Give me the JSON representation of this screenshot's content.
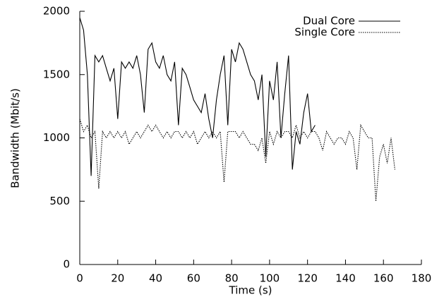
{
  "chart_data": {
    "type": "line",
    "xlabel": "Time (s)",
    "ylabel": "Bandwidth (Mbit/s)",
    "x": [
      0,
      2,
      4,
      6,
      8,
      10,
      12,
      14,
      16,
      18,
      20,
      22,
      24,
      26,
      28,
      30,
      32,
      34,
      36,
      38,
      40,
      42,
      44,
      46,
      48,
      50,
      52,
      54,
      56,
      58,
      60,
      62,
      64,
      66,
      68,
      70,
      72,
      74,
      76,
      78,
      80,
      82,
      84,
      86,
      88,
      90,
      92,
      94,
      96,
      98,
      100,
      102,
      104,
      106,
      108,
      110,
      112,
      114,
      116,
      118,
      120,
      122,
      124,
      126,
      128,
      130,
      132,
      134,
      136,
      138,
      140,
      142,
      144,
      146,
      148,
      150,
      152,
      154,
      156,
      158,
      160,
      162,
      164,
      166
    ],
    "series": [
      {
        "name": "Dual Core",
        "color": "#000000",
        "dash": "solid",
        "values": [
          1950,
          1850,
          1500,
          700,
          1650,
          1600,
          1650,
          1550,
          1450,
          1550,
          1150,
          1600,
          1550,
          1600,
          1550,
          1650,
          1500,
          1200,
          1700,
          1750,
          1600,
          1550,
          1650,
          1500,
          1450,
          1600,
          1100,
          1550,
          1500,
          1400,
          1300,
          1250,
          1200,
          1350,
          1150,
          1000,
          1300,
          1500,
          1650,
          1100,
          1700,
          1600,
          1750,
          1700,
          1600,
          1500,
          1450,
          1300,
          1500,
          850,
          1450,
          1300,
          1600,
          1000,
          1350,
          1650,
          750,
          1050,
          950,
          1200,
          1350,
          1050,
          1100,
          null,
          null,
          null,
          null,
          null,
          null,
          null,
          null,
          null,
          null,
          null,
          null,
          null,
          null,
          null,
          null,
          null,
          null,
          null,
          null,
          null
        ]
      },
      {
        "name": "Single Core",
        "color": "#000000",
        "dash": "dotted",
        "values": [
          1150,
          1050,
          1100,
          1000,
          1050,
          600,
          1050,
          1000,
          1050,
          1000,
          1050,
          1000,
          1050,
          950,
          1000,
          1050,
          1000,
          1050,
          1100,
          1050,
          1100,
          1050,
          1000,
          1050,
          1000,
          1050,
          1050,
          1000,
          1050,
          1000,
          1050,
          950,
          1000,
          1050,
          1000,
          1050,
          1000,
          1050,
          650,
          1050,
          1050,
          1050,
          1000,
          1050,
          1000,
          950,
          950,
          900,
          1000,
          800,
          1050,
          950,
          1050,
          1000,
          1050,
          1050,
          1000,
          1100,
          1000,
          1050,
          1000,
          1050,
          1050,
          1000,
          900,
          1050,
          1000,
          950,
          1000,
          1000,
          950,
          1050,
          1000,
          750,
          1100,
          1050,
          1000,
          1000,
          500,
          850,
          950,
          800,
          1000,
          750
        ]
      }
    ],
    "xlim": [
      0,
      180
    ],
    "xticks": [
      0,
      20,
      40,
      60,
      80,
      100,
      120,
      140,
      160,
      180
    ],
    "ylim": [
      0,
      2000
    ],
    "yticks": [
      0,
      500,
      1000,
      1500,
      2000
    ],
    "legend": "top-right",
    "grid": false
  }
}
